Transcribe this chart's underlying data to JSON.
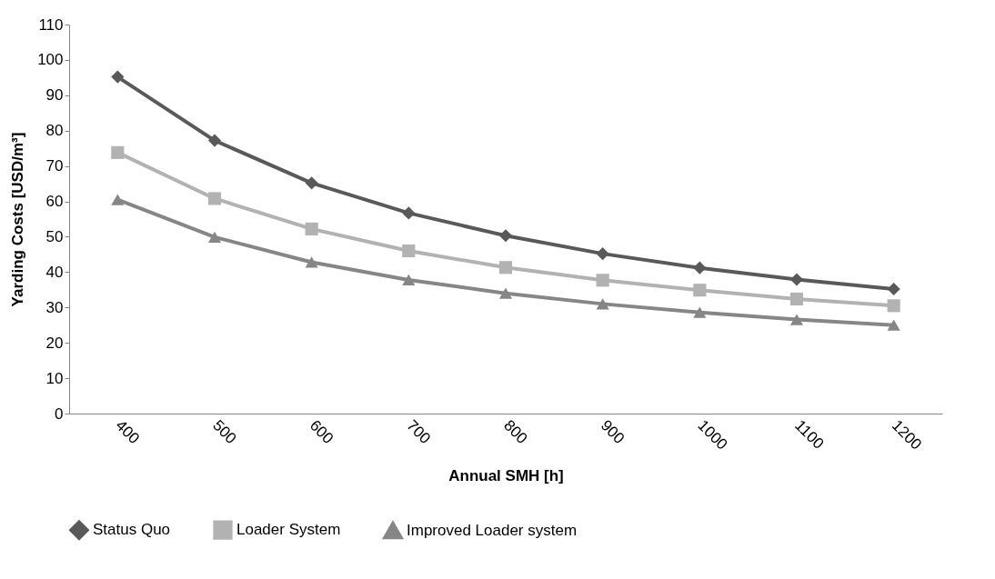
{
  "chart_data": {
    "type": "line",
    "xlabel": "Annual SMH [h]",
    "ylabel": "Yarding Costs [USD/m³]",
    "categories": [
      "400",
      "500",
      "600",
      "700",
      "800",
      "900",
      "1000",
      "1100",
      "1200"
    ],
    "ylim": [
      0,
      110
    ],
    "yticks": [
      0,
      10,
      20,
      30,
      40,
      50,
      60,
      70,
      80,
      90,
      100,
      110
    ],
    "grid": false,
    "legend": "bottom",
    "line_style": "solid",
    "series": [
      {
        "name": "Status Quo",
        "color": "#595959",
        "marker": "diamond",
        "values": [
          95.2,
          77.2,
          65.2,
          56.7,
          50.3,
          45.2,
          41.2,
          37.9,
          35.2
        ]
      },
      {
        "name": "Loader System",
        "color": "#b2b2b2",
        "marker": "square",
        "values": [
          73.8,
          60.8,
          52.2,
          46.0,
          41.3,
          37.7,
          34.9,
          32.4,
          30.5
        ]
      },
      {
        "name": "Improved Loader system",
        "color": "#868686",
        "marker": "triangle",
        "values": [
          60.5,
          49.9,
          42.8,
          37.8,
          34.0,
          31.0,
          28.6,
          26.6,
          25.0
        ]
      }
    ]
  }
}
